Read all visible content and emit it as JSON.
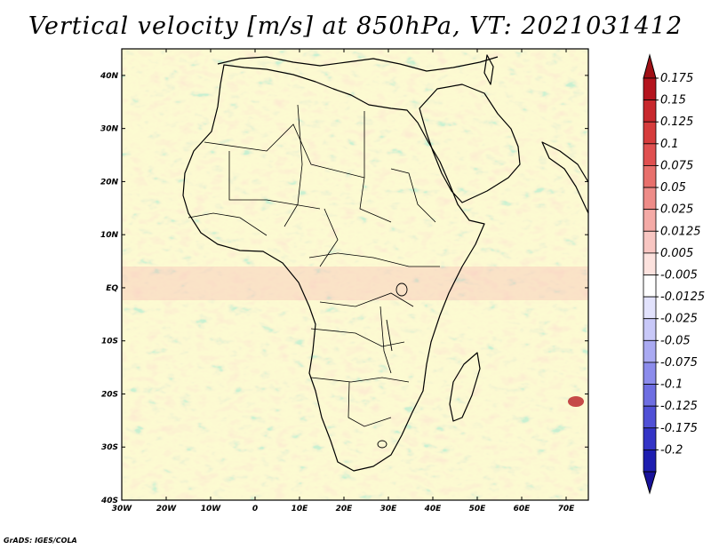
{
  "title": "Vertical velocity [m/s] at 850hPa, VT: 2021031412",
  "credit": "GrADS: IGES/COLA",
  "map": {
    "region": "Africa",
    "lon_range": [
      -30,
      75
    ],
    "lat_range": [
      -40,
      45
    ],
    "lat_labels": [
      "40N",
      "30N",
      "20N",
      "10N",
      "EQ",
      "10S",
      "20S",
      "30S",
      "40S"
    ],
    "lat_values": [
      40,
      30,
      20,
      10,
      0,
      -10,
      -20,
      -30,
      -40
    ],
    "lon_labels": [
      "30W",
      "20W",
      "10W",
      "0",
      "10E",
      "20E",
      "30E",
      "40E",
      "50E",
      "60E",
      "70E"
    ],
    "lon_values": [
      -30,
      -20,
      -10,
      0,
      10,
      20,
      30,
      40,
      50,
      60,
      70
    ]
  },
  "colorbar": {
    "labels": [
      "0.175",
      "0.15",
      "0.125",
      "0.1",
      "0.075",
      "0.05",
      "0.025",
      "0.0125",
      "0.005",
      "-0.005",
      "-0.0125",
      "-0.025",
      "-0.05",
      "-0.075",
      "-0.1",
      "-0.125",
      "-0.175",
      "-0.2"
    ],
    "colors": [
      "#b4141e",
      "#c8282d",
      "#d63c3c",
      "#e05050",
      "#e8706c",
      "#ee8c88",
      "#f4aaa6",
      "#f8c6c2",
      "#fce2de",
      "#ffffff",
      "#e2e2fc",
      "#c8c8f8",
      "#aaaaf2",
      "#8c8cec",
      "#6e6ee2",
      "#5050d6",
      "#3434c6",
      "#1e1eb0",
      "#0a0a94"
    ],
    "top_arrow_color": "#a01016",
    "bottom_arrow_color": "#18129a"
  }
}
